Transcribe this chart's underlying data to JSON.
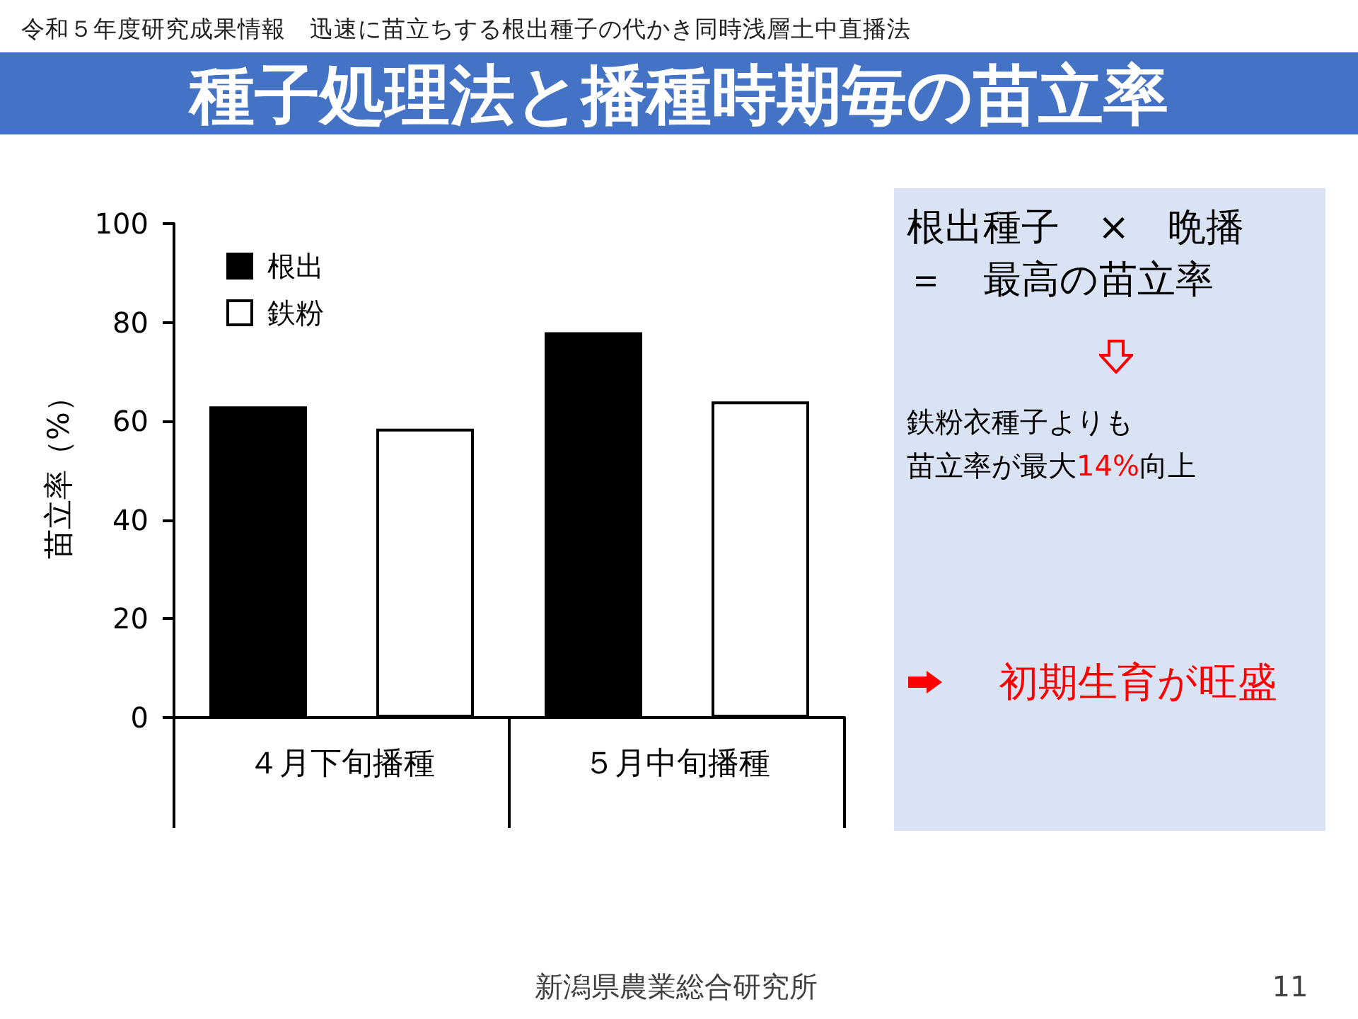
{
  "chart_data": {
    "type": "bar",
    "title": "種子処理法と播種時期毎の苗立率",
    "subtitle": "令和５年度研究成果情報　迅速に苗立ちする根出種子の代かき同時浅層土中直播法",
    "ylabel": "苗立率（%）",
    "categories": [
      "４月下旬播種",
      "５月中旬播種"
    ],
    "series": [
      {
        "name": "根出",
        "color": "#000000",
        "values": [
          63,
          78
        ]
      },
      {
        "name": "鉄粉",
        "color": "#ffffff",
        "values": [
          58.5,
          64
        ]
      }
    ],
    "ylim": [
      0,
      100
    ],
    "yticks": [
      0,
      20,
      40,
      60,
      80,
      100
    ],
    "legend": "top left",
    "annotations": [
      "根出種子　×　晩播",
      "＝　最高の苗立率",
      "鉄粉衣種子よりも",
      "苗立率が最大14%向上",
      "初期生育が旺盛",
      "新潟県農業総合研究所",
      "11"
    ]
  }
}
